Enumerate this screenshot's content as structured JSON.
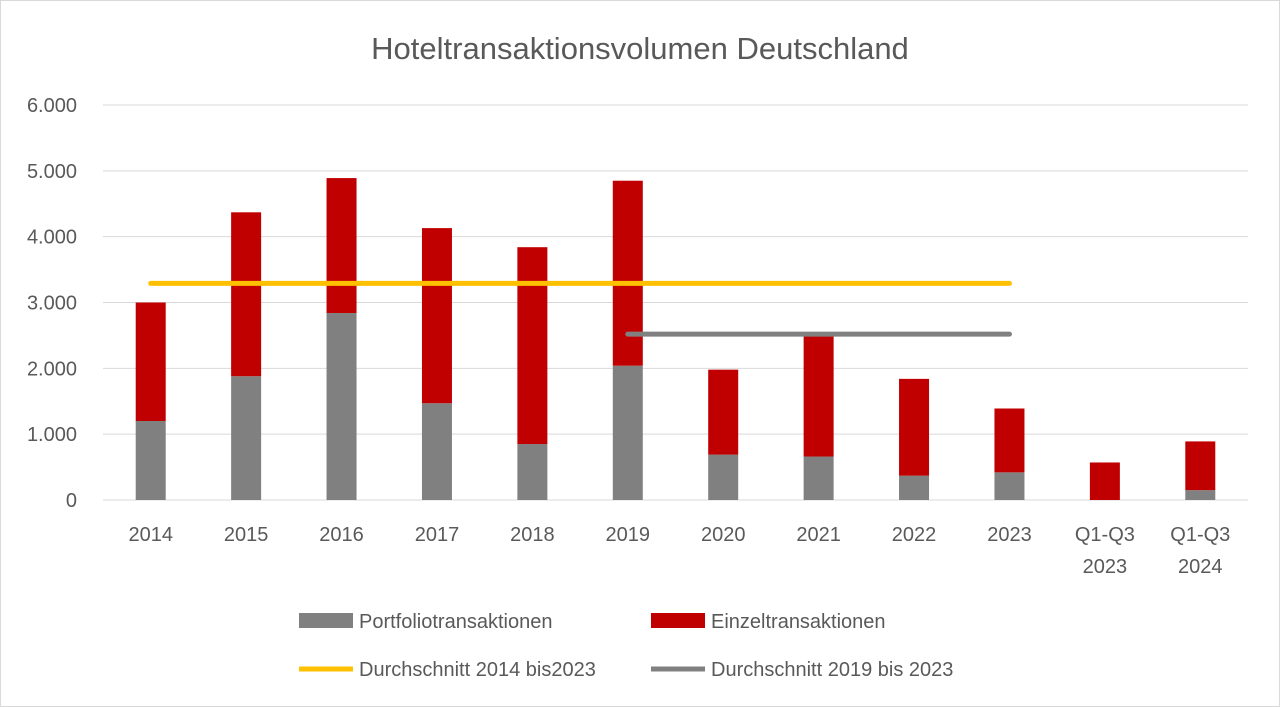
{
  "chart_data": {
    "type": "bar",
    "stacked": true,
    "title": "Hoteltransaktionsvolumen Deutschland",
    "categories": [
      [
        "2014"
      ],
      [
        "2015"
      ],
      [
        "2016"
      ],
      [
        "2017"
      ],
      [
        "2018"
      ],
      [
        "2019"
      ],
      [
        "2020"
      ],
      [
        "2021"
      ],
      [
        "2022"
      ],
      [
        "2023"
      ],
      [
        "Q1-Q3",
        "2023"
      ],
      [
        "Q1-Q3",
        "2024"
      ]
    ],
    "ylim": [
      0,
      6000
    ],
    "yticks": [
      0,
      1000,
      2000,
      3000,
      4000,
      5000,
      6000
    ],
    "ytick_labels": [
      "0",
      "1.000",
      "2.000",
      "3.000",
      "4.000",
      "5.000",
      "6.000"
    ],
    "grid": true,
    "series": [
      {
        "name": "Portfoliotransaktionen",
        "color": "#808080",
        "values": [
          1200,
          1880,
          2840,
          1470,
          850,
          2040,
          690,
          660,
          370,
          420,
          0,
          150
        ]
      },
      {
        "name": "Einzeltransaktionen",
        "color": "#c00000",
        "values": [
          1800,
          2490,
          2050,
          2660,
          2990,
          2810,
          1290,
          1830,
          1470,
          970,
          570,
          740
        ]
      }
    ],
    "reference_lines": [
      {
        "name": "Durchschnitt 2014 bis2023",
        "color": "#ffc000",
        "value": 3290,
        "from_index": 0,
        "to_index": 9
      },
      {
        "name": "Durchschnitt 2019 bis 2023",
        "color": "#808080",
        "value": 2520,
        "from_index": 5,
        "to_index": 9
      }
    ],
    "legend_position": "bottom"
  }
}
